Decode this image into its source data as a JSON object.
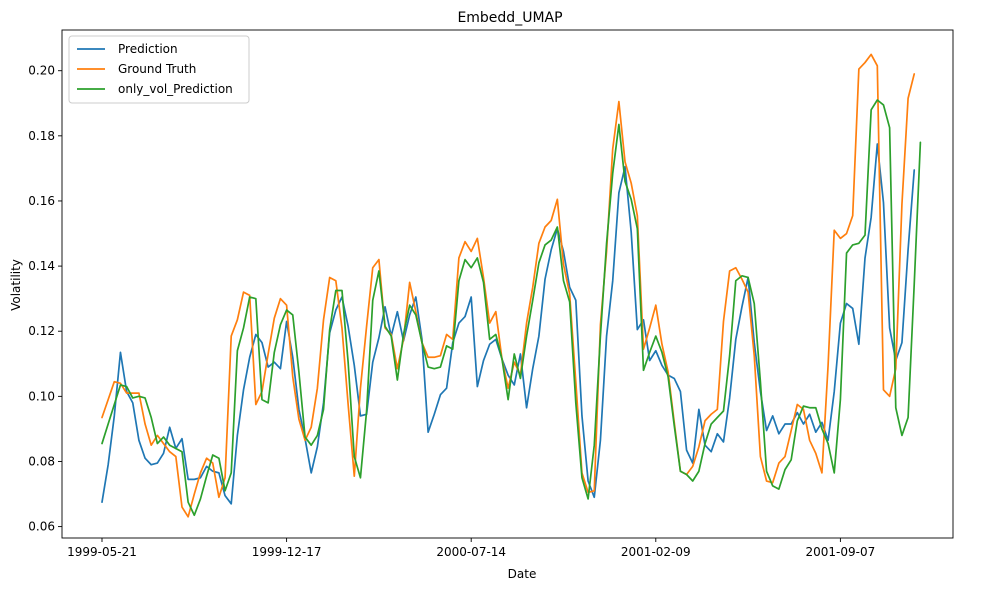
{
  "chart_data": {
    "type": "line",
    "title": "Embedd_UMAP",
    "xlabel": "Date",
    "ylabel": "Volatility",
    "x_tick_labels": [
      "1999-05-21",
      "1999-12-17",
      "2000-07-14",
      "2001-02-09",
      "2001-09-07"
    ],
    "x_tick_index": [
      0,
      30,
      60,
      90,
      120
    ],
    "y_ticks": [
      0.06,
      0.08,
      0.1,
      0.12,
      0.14,
      0.16,
      0.18,
      0.2
    ],
    "y_tick_labels": [
      "0.06",
      "0.08",
      "0.10",
      "0.12",
      "0.14",
      "0.16",
      "0.18",
      "0.20"
    ],
    "ylim": [
      0.0565,
      0.2125
    ],
    "xlim": [
      -6.5,
      138.3
    ],
    "legend_position": "upper-left",
    "grid": false,
    "series": [
      {
        "name": "Prediction",
        "color": "#1f77b4",
        "values": [
          0.0675,
          0.079,
          0.094,
          0.1135,
          0.1015,
          0.098,
          0.0865,
          0.081,
          0.079,
          0.0795,
          0.0825,
          0.0905,
          0.084,
          0.087,
          0.0745,
          0.0745,
          0.075,
          0.0785,
          0.077,
          0.0765,
          0.0695,
          0.067,
          0.088,
          0.102,
          0.112,
          0.119,
          0.1165,
          0.109,
          0.1105,
          0.1085,
          0.123,
          0.112,
          0.096,
          0.087,
          0.0765,
          0.0845,
          0.098,
          0.1195,
          0.1265,
          0.1305,
          0.1215,
          0.1095,
          0.094,
          0.0945,
          0.1105,
          0.118,
          0.1275,
          0.1185,
          0.126,
          0.117,
          0.125,
          0.1305,
          0.1175,
          0.089,
          0.0945,
          0.1005,
          0.1025,
          0.1165,
          0.1225,
          0.1245,
          0.1305,
          0.103,
          0.111,
          0.116,
          0.1175,
          0.1115,
          0.1065,
          0.1035,
          0.113,
          0.0965,
          0.1085,
          0.1185,
          0.136,
          0.145,
          0.1515,
          0.1445,
          0.1335,
          0.1295,
          0.094,
          0.074,
          0.069,
          0.0865,
          0.1185,
          0.1355,
          0.1625,
          0.1705,
          0.1505,
          0.1205,
          0.1235,
          0.111,
          0.114,
          0.1095,
          0.1065,
          0.1055,
          0.1015,
          0.0835,
          0.0795,
          0.096,
          0.085,
          0.083,
          0.0885,
          0.086,
          0.0995,
          0.1175,
          0.1275,
          0.1365,
          0.1165,
          0.1015,
          0.0895,
          0.094,
          0.0885,
          0.0915,
          0.0915,
          0.095,
          0.0915,
          0.0945,
          0.089,
          0.092,
          0.0865,
          0.1015,
          0.1225,
          0.1285,
          0.127,
          0.116,
          0.1425,
          0.155,
          0.1775,
          0.1595,
          0.121,
          0.111,
          0.1165,
          0.145,
          0.1695
        ]
      },
      {
        "name": "Ground Truth",
        "color": "#ff7f0e",
        "values": [
          0.0935,
          0.099,
          0.1045,
          0.104,
          0.101,
          0.101,
          0.101,
          0.0915,
          0.085,
          0.088,
          0.0855,
          0.083,
          0.0815,
          0.066,
          0.063,
          0.07,
          0.0765,
          0.081,
          0.0795,
          0.069,
          0.075,
          0.1185,
          0.1235,
          0.132,
          0.131,
          0.0975,
          0.1015,
          0.113,
          0.124,
          0.13,
          0.128,
          0.106,
          0.093,
          0.0865,
          0.0905,
          0.1025,
          0.1235,
          0.1365,
          0.1355,
          0.121,
          0.0975,
          0.0755,
          0.1025,
          0.1215,
          0.1395,
          0.142,
          0.121,
          0.119,
          0.1085,
          0.1175,
          0.135,
          0.126,
          0.1165,
          0.112,
          0.112,
          0.1125,
          0.119,
          0.1175,
          0.1425,
          0.1475,
          0.1445,
          0.1485,
          0.1365,
          0.1225,
          0.126,
          0.1115,
          0.1025,
          0.1105,
          0.1065,
          0.1225,
          0.1335,
          0.147,
          0.152,
          0.154,
          0.1605,
          0.1405,
          0.1315,
          0.1045,
          0.0765,
          0.0705,
          0.071,
          0.122,
          0.1445,
          0.176,
          0.1905,
          0.172,
          0.1655,
          0.1555,
          0.1145,
          0.121,
          0.128,
          0.116,
          0.1075,
          0.092,
          0.077,
          0.076,
          0.0785,
          0.0845,
          0.0925,
          0.0945,
          0.096,
          0.123,
          0.1385,
          0.1395,
          0.136,
          0.132,
          0.1125,
          0.0815,
          0.074,
          0.0735,
          0.0795,
          0.0815,
          0.0895,
          0.0975,
          0.096,
          0.0865,
          0.0825,
          0.0765,
          0.1095,
          0.151,
          0.1485,
          0.15,
          0.1555,
          0.2005,
          0.2025,
          0.205,
          0.2015,
          0.102,
          0.1,
          0.1085,
          0.159,
          0.1915,
          0.199
        ]
      },
      {
        "name": "only_vol_Prediction",
        "color": "#2ca02c",
        "values": [
          0.0855,
          0.0915,
          0.0975,
          0.1035,
          0.103,
          0.0995,
          0.1,
          0.0995,
          0.0935,
          0.0855,
          0.0875,
          0.085,
          0.084,
          0.083,
          0.0675,
          0.0635,
          0.0685,
          0.0755,
          0.082,
          0.081,
          0.071,
          0.0765,
          0.114,
          0.121,
          0.1305,
          0.13,
          0.099,
          0.098,
          0.1135,
          0.122,
          0.1265,
          0.125,
          0.1075,
          0.0875,
          0.085,
          0.088,
          0.096,
          0.1205,
          0.1325,
          0.1325,
          0.1105,
          0.0815,
          0.075,
          0.0955,
          0.1295,
          0.1385,
          0.1215,
          0.1185,
          0.105,
          0.119,
          0.128,
          0.125,
          0.1165,
          0.109,
          0.1085,
          0.109,
          0.1155,
          0.1145,
          0.1355,
          0.142,
          0.1395,
          0.1425,
          0.135,
          0.1175,
          0.119,
          0.1115,
          0.099,
          0.113,
          0.1055,
          0.1185,
          0.1295,
          0.141,
          0.1465,
          0.148,
          0.152,
          0.1355,
          0.129,
          0.098,
          0.075,
          0.0685,
          0.085,
          0.1185,
          0.147,
          0.1685,
          0.1835,
          0.166,
          0.1605,
          0.1515,
          0.108,
          0.1135,
          0.1185,
          0.1135,
          0.106,
          0.091,
          0.077,
          0.076,
          0.074,
          0.077,
          0.0855,
          0.0915,
          0.0935,
          0.0955,
          0.1125,
          0.1355,
          0.137,
          0.1365,
          0.1285,
          0.1045,
          0.077,
          0.0725,
          0.0715,
          0.0775,
          0.0805,
          0.0925,
          0.097,
          0.0965,
          0.0965,
          0.09,
          0.0855,
          0.0765,
          0.099,
          0.144,
          0.1465,
          0.147,
          0.1495,
          0.188,
          0.191,
          0.1895,
          0.1825,
          0.0965,
          0.088,
          0.0935,
          0.1345,
          0.178
        ]
      }
    ]
  }
}
